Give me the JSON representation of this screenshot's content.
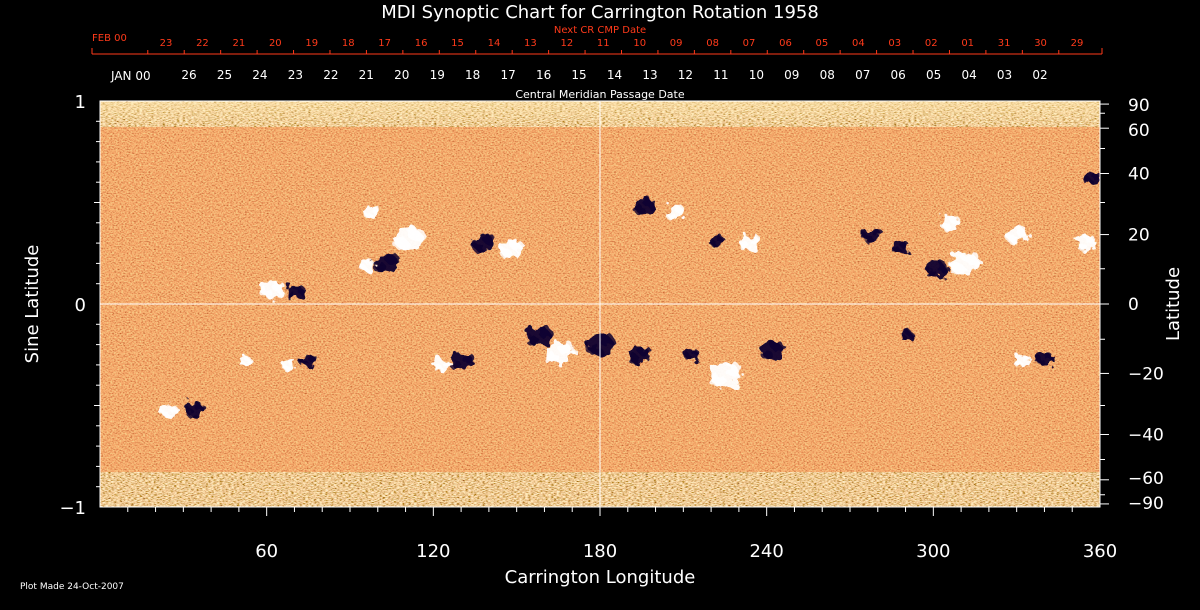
{
  "colors": {
    "background": "#000000",
    "text": "#ffffff",
    "secondary_axis_text": "#ff3a1a",
    "field_base": "#d2531a",
    "positive_polarity": "#ffffff",
    "negative_polarity": "#0a0630"
  },
  "chart_data": {
    "type": "heatmap",
    "title": "MDI Synoptic Chart for Carrington Rotation 1958",
    "xlabel": "Carrington Longitude",
    "ylabel_left": "Sine Latitude",
    "ylabel_right": "Latitude",
    "xlim": [
      0,
      360
    ],
    "ylim": [
      -1,
      1
    ],
    "x_ticks": [
      60,
      120,
      180,
      240,
      300,
      360
    ],
    "y_left_ticks": [
      {
        "value": 1,
        "label": "1"
      },
      {
        "value": 0,
        "label": "0"
      },
      {
        "value": -1,
        "label": "−1"
      }
    ],
    "y_right_ticks": [
      {
        "deg": 90,
        "label": "90"
      },
      {
        "deg": 60,
        "label": "60"
      },
      {
        "deg": 40,
        "label": "40"
      },
      {
        "deg": 20,
        "label": "20"
      },
      {
        "deg": 0,
        "label": "0"
      },
      {
        "deg": -20,
        "label": "−20"
      },
      {
        "deg": -40,
        "label": "−40"
      },
      {
        "deg": -60,
        "label": "−60"
      },
      {
        "deg": -90,
        "label": "−90"
      }
    ],
    "crosshair": {
      "longitude": 180,
      "sine_latitude": 0
    },
    "top_axis_cmp_title": "Central Meridian Passage Date",
    "top_axis_cmp_start": "JAN 00",
    "top_axis_cmp_dates": [
      "26",
      "25",
      "24",
      "23",
      "22",
      "21",
      "20",
      "19",
      "18",
      "17",
      "16",
      "15",
      "14",
      "13",
      "12",
      "11",
      "10",
      "09",
      "08",
      "07",
      "06",
      "05",
      "04",
      "03",
      "02"
    ],
    "top_axis_next_title": "Next CR CMP Date",
    "top_axis_next_start": "FEB 00",
    "top_axis_next_dates": [
      "23",
      "22",
      "21",
      "20",
      "19",
      "18",
      "17",
      "16",
      "15",
      "14",
      "13",
      "12",
      "11",
      "10",
      "09",
      "08",
      "07",
      "06",
      "05",
      "04",
      "03",
      "02",
      "01",
      "31",
      "30",
      "29"
    ],
    "footer": "Plot Made 24-Oct-2007",
    "active_regions": [
      {
        "lon": 62,
        "sinlat": 0.07,
        "polarity": "positive",
        "size": 1.0
      },
      {
        "lon": 70,
        "sinlat": 0.06,
        "polarity": "negative",
        "size": 0.8
      },
      {
        "lon": 103,
        "sinlat": 0.2,
        "polarity": "negative",
        "size": 1.1
      },
      {
        "lon": 111,
        "sinlat": 0.32,
        "polarity": "positive",
        "size": 1.3
      },
      {
        "lon": 98,
        "sinlat": 0.45,
        "polarity": "positive",
        "size": 0.7
      },
      {
        "lon": 138,
        "sinlat": 0.3,
        "polarity": "negative",
        "size": 1.0
      },
      {
        "lon": 148,
        "sinlat": 0.27,
        "polarity": "positive",
        "size": 1.0
      },
      {
        "lon": 96,
        "sinlat": 0.19,
        "polarity": "positive",
        "size": 0.6
      },
      {
        "lon": 196,
        "sinlat": 0.48,
        "polarity": "negative",
        "size": 0.9
      },
      {
        "lon": 207,
        "sinlat": 0.45,
        "polarity": "positive",
        "size": 0.8
      },
      {
        "lon": 234,
        "sinlat": 0.3,
        "polarity": "positive",
        "size": 0.9
      },
      {
        "lon": 222,
        "sinlat": 0.31,
        "polarity": "negative",
        "size": 0.6
      },
      {
        "lon": 278,
        "sinlat": 0.34,
        "polarity": "negative",
        "size": 0.8
      },
      {
        "lon": 288,
        "sinlat": 0.28,
        "polarity": "negative",
        "size": 0.7
      },
      {
        "lon": 301,
        "sinlat": 0.17,
        "polarity": "negative",
        "size": 0.9
      },
      {
        "lon": 311,
        "sinlat": 0.2,
        "polarity": "positive",
        "size": 1.3
      },
      {
        "lon": 306,
        "sinlat": 0.4,
        "polarity": "positive",
        "size": 0.8
      },
      {
        "lon": 330,
        "sinlat": 0.34,
        "polarity": "positive",
        "size": 0.9
      },
      {
        "lon": 357,
        "sinlat": 0.62,
        "polarity": "negative",
        "size": 0.7
      },
      {
        "lon": 355,
        "sinlat": 0.3,
        "polarity": "positive",
        "size": 0.8
      },
      {
        "lon": 158,
        "sinlat": -0.16,
        "polarity": "negative",
        "size": 1.1
      },
      {
        "lon": 165,
        "sinlat": -0.24,
        "polarity": "positive",
        "size": 1.3
      },
      {
        "lon": 180,
        "sinlat": -0.2,
        "polarity": "negative",
        "size": 1.2
      },
      {
        "lon": 194,
        "sinlat": -0.25,
        "polarity": "negative",
        "size": 1.0
      },
      {
        "lon": 130,
        "sinlat": -0.28,
        "polarity": "negative",
        "size": 1.0
      },
      {
        "lon": 123,
        "sinlat": -0.3,
        "polarity": "positive",
        "size": 0.7
      },
      {
        "lon": 225,
        "sinlat": -0.35,
        "polarity": "positive",
        "size": 1.4
      },
      {
        "lon": 242,
        "sinlat": -0.23,
        "polarity": "negative",
        "size": 1.0
      },
      {
        "lon": 213,
        "sinlat": -0.25,
        "polarity": "negative",
        "size": 0.6
      },
      {
        "lon": 75,
        "sinlat": -0.28,
        "polarity": "negative",
        "size": 0.7
      },
      {
        "lon": 68,
        "sinlat": -0.3,
        "polarity": "positive",
        "size": 0.6
      },
      {
        "lon": 34,
        "sinlat": -0.52,
        "polarity": "negative",
        "size": 0.8
      },
      {
        "lon": 25,
        "sinlat": -0.53,
        "polarity": "positive",
        "size": 0.7
      },
      {
        "lon": 52,
        "sinlat": -0.28,
        "polarity": "positive",
        "size": 0.5
      },
      {
        "lon": 340,
        "sinlat": -0.27,
        "polarity": "negative",
        "size": 0.7
      },
      {
        "lon": 332,
        "sinlat": -0.28,
        "polarity": "positive",
        "size": 0.7
      },
      {
        "lon": 290,
        "sinlat": -0.15,
        "polarity": "negative",
        "size": 0.5
      }
    ]
  }
}
